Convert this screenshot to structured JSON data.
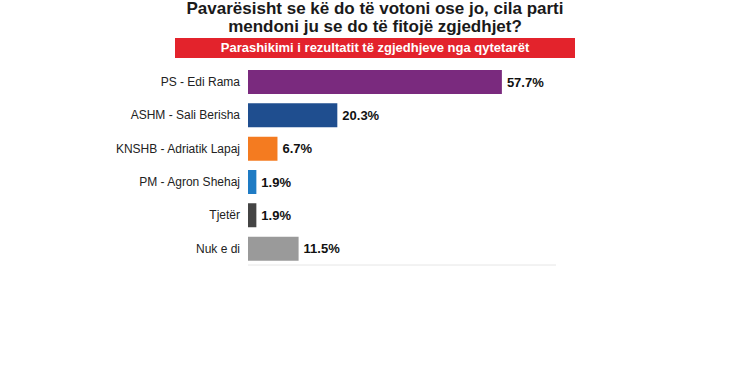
{
  "chart_data": {
    "type": "bar",
    "orientation": "horizontal",
    "title": "Pavarësisht se kë do të votoni ose jo, cila parti mendoni ju se do të fitojë zgjedhjet?",
    "subtitle": "Parashikimi i rezultatit të zgjedhjeve nga qytetarët",
    "categories": [
      "PS - Edi Rama",
      "ASHM - Sali Berisha",
      "KNSHB - Adriatik Lapaj",
      "PM - Agron Shehaj",
      "Tjetër",
      "Nuk e di"
    ],
    "values": [
      57.7,
      20.3,
      6.7,
      1.9,
      1.9,
      11.5
    ],
    "value_labels": [
      "57.7%",
      "20.3%",
      "6.7%",
      "1.9%",
      "1.9%",
      "11.5%"
    ],
    "colors": [
      "#7a2a7e",
      "#1f4e8f",
      "#f47b20",
      "#1e7bc4",
      "#444444",
      "#9a9a9a"
    ],
    "xlim": [
      0,
      70
    ],
    "data_labels": true,
    "tick_labels": "y",
    "grid": false
  }
}
